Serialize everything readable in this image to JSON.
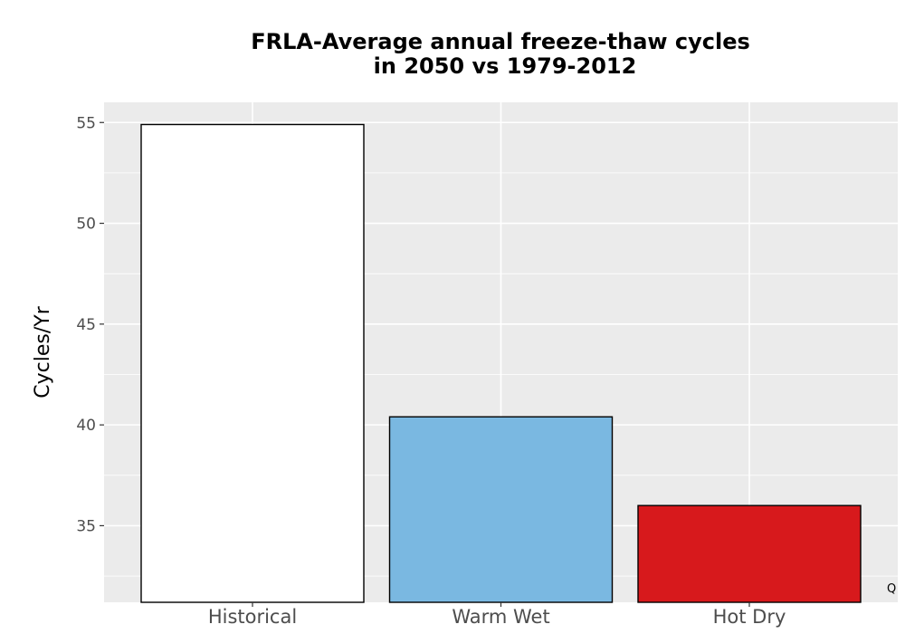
{
  "chart_data": {
    "type": "bar",
    "title_lines": [
      "FRLA-Average annual freeze-thaw cycles",
      "in 2050 vs 1979-2012"
    ],
    "ylabel": "Cycles/Yr",
    "xlabel": "",
    "categories": [
      "Historical",
      "Warm Wet",
      "Hot Dry"
    ],
    "values": [
      54.9,
      40.4,
      36.0
    ],
    "colors": [
      "#ffffff",
      "#7ab8e1",
      "#d7191c"
    ],
    "ylim": [
      31.2,
      56
    ],
    "yticks": [
      35,
      40,
      45,
      50,
      55
    ],
    "grid": true,
    "panel_background": "#ebebeb",
    "corner_label": "Q"
  }
}
